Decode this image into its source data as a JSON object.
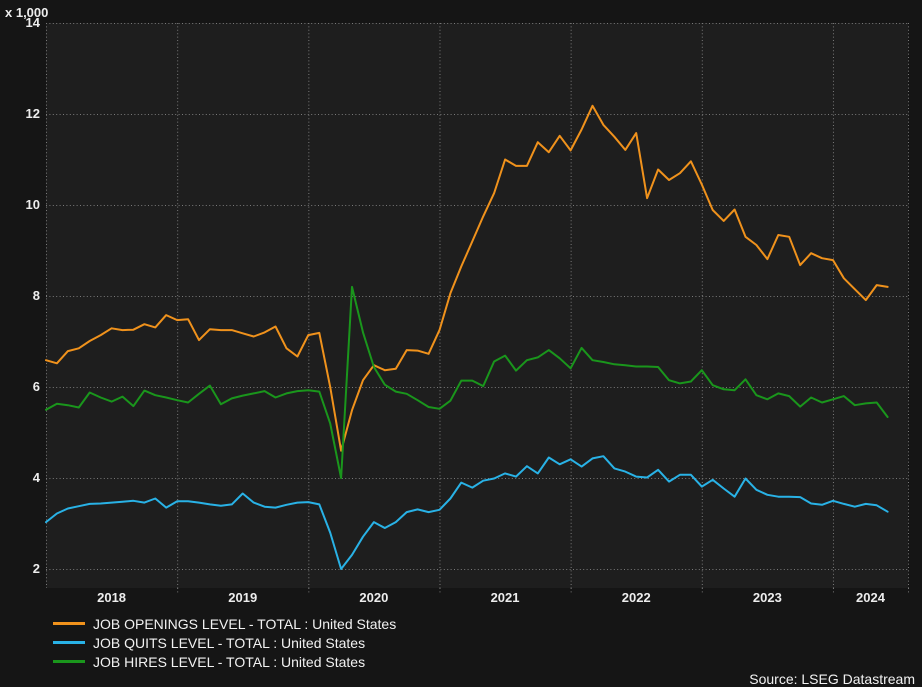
{
  "chart_data": {
    "type": "line",
    "title": "",
    "unit_label": "x 1,000",
    "source": "Source: LSEG Datastream",
    "x_start": "2018-01",
    "x_end": "2024-06",
    "x_tick_labels": [
      "2018",
      "2019",
      "2020",
      "2021",
      "2022",
      "2023",
      "2024"
    ],
    "y_ticks": [
      14,
      12,
      10,
      8,
      6,
      4,
      2
    ],
    "ylim": [
      1.58,
      14
    ],
    "grid": "dotted",
    "legend_position": "bottom-left",
    "colors": {
      "background": "#151515",
      "plot_background": "#1e1e1e",
      "gridline": "#7a7a7a",
      "text": "#ededed"
    },
    "series": [
      {
        "name": "JOB OPENINGS LEVEL - TOTAL : United States",
        "color": "#f0921c",
        "values": [
          6.59,
          6.52,
          6.79,
          6.85,
          7.01,
          7.14,
          7.29,
          7.25,
          7.26,
          7.38,
          7.31,
          7.58,
          7.47,
          7.49,
          7.03,
          7.27,
          7.25,
          7.25,
          7.18,
          7.11,
          7.2,
          7.33,
          6.85,
          6.67,
          7.14,
          7.19,
          6.0,
          4.6,
          5.49,
          6.15,
          6.48,
          6.37,
          6.4,
          6.81,
          6.8,
          6.73,
          7.25,
          8.06,
          8.65,
          9.2,
          9.75,
          10.26,
          11.0,
          10.86,
          10.86,
          11.38,
          11.16,
          11.52,
          11.2,
          11.66,
          12.18,
          11.76,
          11.5,
          11.21,
          11.58,
          10.15,
          10.78,
          10.55,
          10.7,
          10.96,
          10.45,
          9.89,
          9.65,
          9.9,
          9.3,
          9.12,
          8.81,
          9.34,
          9.3,
          8.68,
          8.94,
          8.83,
          8.79,
          8.39,
          8.15,
          7.91,
          8.24,
          8.2
        ]
      },
      {
        "name": "JOB QUITS LEVEL - TOTAL : United States",
        "color": "#29b2e6",
        "values": [
          3.03,
          3.22,
          3.33,
          3.38,
          3.43,
          3.44,
          3.46,
          3.48,
          3.5,
          3.46,
          3.55,
          3.35,
          3.49,
          3.49,
          3.46,
          3.42,
          3.39,
          3.42,
          3.66,
          3.46,
          3.37,
          3.35,
          3.41,
          3.46,
          3.47,
          3.42,
          2.8,
          2.0,
          2.31,
          2.71,
          3.03,
          2.9,
          3.03,
          3.25,
          3.31,
          3.25,
          3.3,
          3.55,
          3.9,
          3.79,
          3.94,
          3.99,
          4.1,
          4.03,
          4.26,
          4.1,
          4.45,
          4.3,
          4.41,
          4.25,
          4.43,
          4.48,
          4.21,
          4.14,
          4.03,
          4.01,
          4.18,
          3.92,
          4.07,
          4.07,
          3.81,
          3.96,
          3.77,
          3.59,
          3.99,
          3.74,
          3.63,
          3.59,
          3.59,
          3.58,
          3.44,
          3.41,
          3.5,
          3.43,
          3.37,
          3.43,
          3.4,
          3.26
        ]
      },
      {
        "name": "JOB HIRES LEVEL - TOTAL : United States",
        "color": "#1a961c",
        "values": [
          5.5,
          5.63,
          5.6,
          5.55,
          5.88,
          5.77,
          5.68,
          5.79,
          5.58,
          5.92,
          5.82,
          5.77,
          5.71,
          5.66,
          5.85,
          6.03,
          5.62,
          5.75,
          5.81,
          5.86,
          5.91,
          5.77,
          5.86,
          5.91,
          5.93,
          5.9,
          5.2,
          4.0,
          8.2,
          7.2,
          6.44,
          6.05,
          5.9,
          5.85,
          5.71,
          5.56,
          5.52,
          5.7,
          6.14,
          6.14,
          6.02,
          6.56,
          6.69,
          6.36,
          6.59,
          6.65,
          6.81,
          6.63,
          6.41,
          6.86,
          6.59,
          6.55,
          6.5,
          6.48,
          6.45,
          6.45,
          6.44,
          6.15,
          6.08,
          6.12,
          6.37,
          6.04,
          5.95,
          5.93,
          6.17,
          5.82,
          5.73,
          5.86,
          5.8,
          5.57,
          5.77,
          5.66,
          5.73,
          5.8,
          5.6,
          5.64,
          5.66,
          5.34
        ]
      }
    ]
  }
}
